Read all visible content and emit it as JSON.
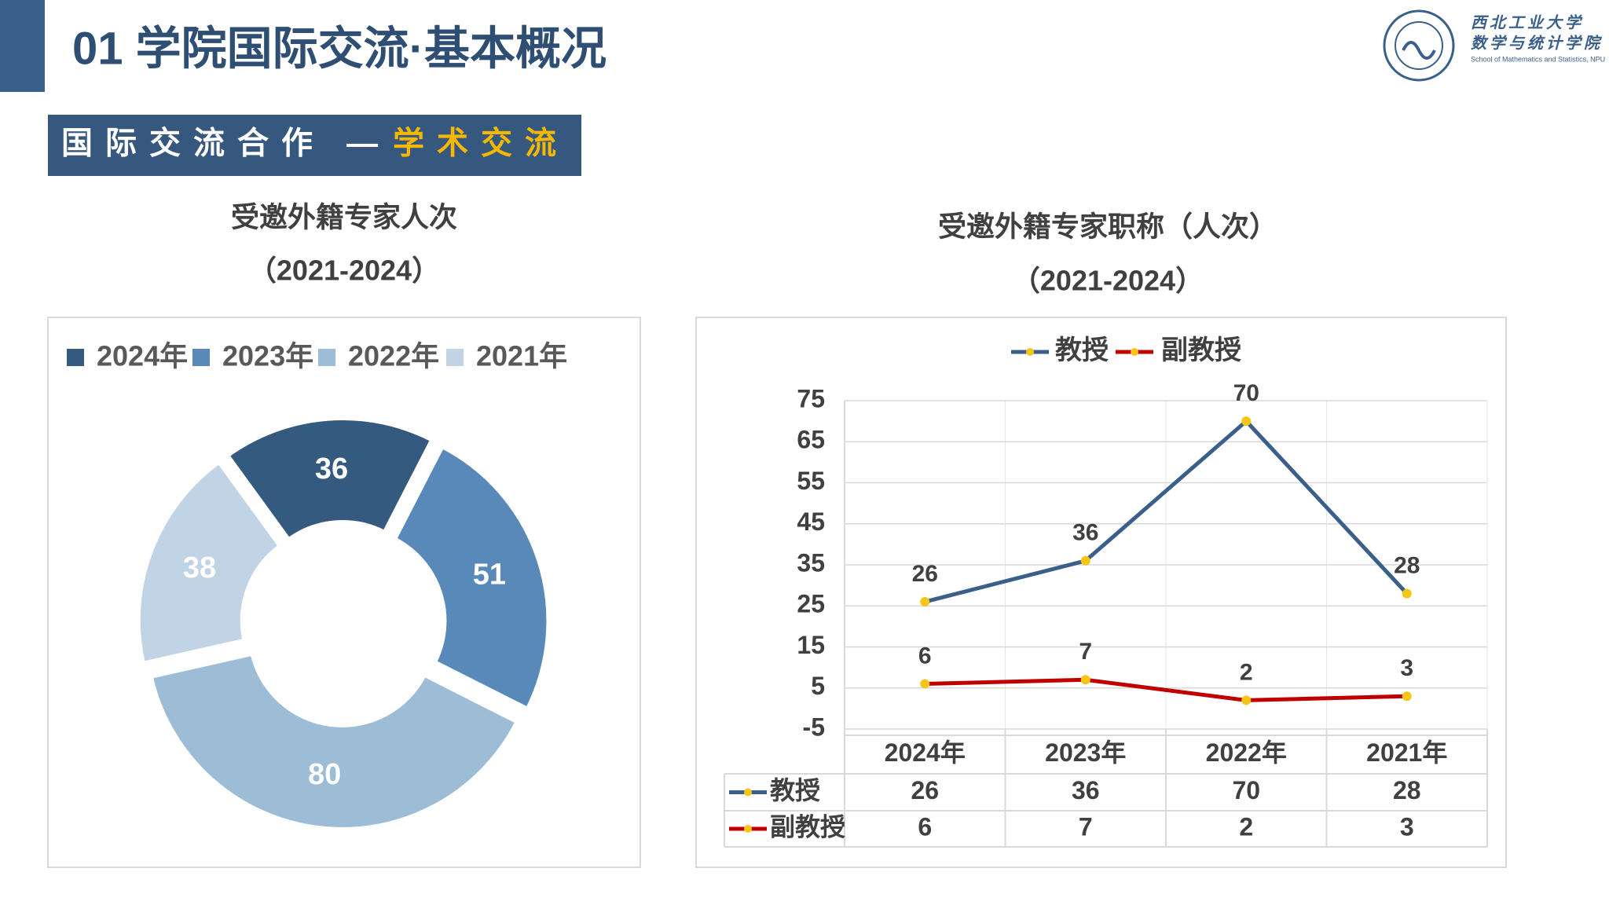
{
  "header": {
    "title": "01 学院国际交流·基本概况",
    "banner_main": "国际交流合作 —",
    "banner_highlight": "学术交流",
    "logo_name": "西北工业大学",
    "logo_school": "数学与统计学院",
    "logo_english": "School of Mathematics and Statistics, NPU"
  },
  "chart_data": [
    {
      "type": "pie",
      "title": "受邀外籍专家人次",
      "subtitle": "（2021-2024）",
      "categories": [
        "2024年",
        "2023年",
        "2022年",
        "2021年"
      ],
      "values": [
        36,
        51,
        80,
        38
      ],
      "colors": [
        "#355a80",
        "#5889b8",
        "#9dbcd6",
        "#c0d4e6"
      ],
      "legend": "top",
      "donut": true
    },
    {
      "type": "line",
      "title": "受邀外籍专家职称（人次）",
      "subtitle": "（2021-2024）",
      "categories": [
        "2024年",
        "2023年",
        "2022年",
        "2021年"
      ],
      "series": [
        {
          "name": "教授",
          "color": "#3a5f8a",
          "values": [
            26,
            36,
            70,
            28
          ]
        },
        {
          "name": "副教授",
          "color": "#c00000",
          "values": [
            6,
            7,
            2,
            3
          ]
        }
      ],
      "marker_color": "#f5c518",
      "ylim": [
        -5,
        75
      ],
      "yticks": [
        -5,
        5,
        15,
        25,
        35,
        45,
        55,
        65,
        75
      ],
      "grid": true,
      "legend": "top",
      "data_table": true
    }
  ]
}
